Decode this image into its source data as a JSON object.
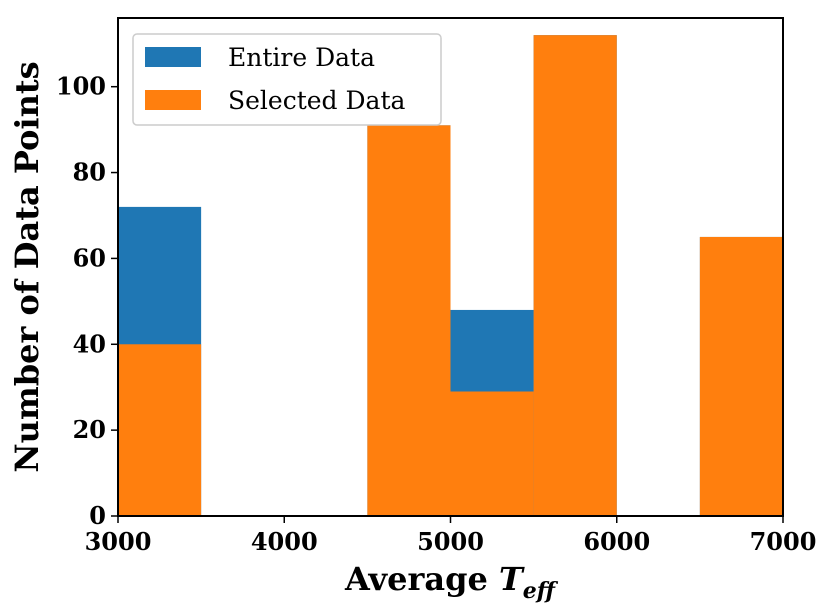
{
  "chart_data": {
    "type": "bar",
    "title": "",
    "xlabel_prefix": "Average ",
    "xlabel_symbol": "T",
    "xlabel_subscript": "eff",
    "ylabel": "Number of Data Points",
    "xlim": [
      3000,
      7000
    ],
    "ylim": [
      0,
      116
    ],
    "xticks": [
      3000,
      4000,
      5000,
      6000,
      7000
    ],
    "yticks": [
      0,
      20,
      40,
      60,
      80,
      100
    ],
    "grid": false,
    "legend_position": "top-left",
    "bin_edges": [
      3000,
      3500,
      4000,
      4500,
      5000,
      5500,
      6000,
      6500,
      7000
    ],
    "series": [
      {
        "name": "Entire Data",
        "color": "#1f77b4",
        "values": [
          72,
          0,
          0,
          91,
          48,
          112,
          0,
          65
        ]
      },
      {
        "name": "Selected Data",
        "color": "#ff7f0e",
        "values": [
          40,
          0,
          0,
          91,
          29,
          112,
          0,
          65
        ]
      }
    ]
  }
}
